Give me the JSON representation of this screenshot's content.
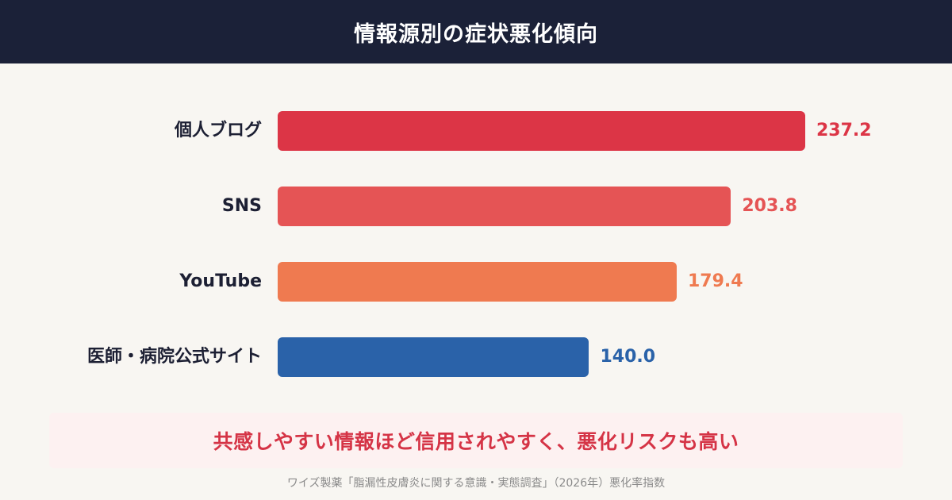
{
  "header": {
    "title": "情報源別の症状悪化傾向"
  },
  "chart_data": {
    "type": "bar",
    "orientation": "horizontal",
    "title": "情報源別の症状悪化傾向",
    "categories": [
      "個人ブログ",
      "SNS",
      "YouTube",
      "医師・病院公式サイト"
    ],
    "values": [
      237.2,
      203.8,
      179.4,
      140.0
    ],
    "value_labels": [
      "237.2",
      "203.8",
      "179.4",
      "140.0"
    ],
    "colors": [
      "#dc3546",
      "#e55455",
      "#ef7a50",
      "#2a62a9"
    ],
    "xlim": [
      0,
      260
    ],
    "grid": false,
    "legend": "none"
  },
  "callout": {
    "text": "共感しやすい情報ほど信用されやすく、悪化リスクも高い"
  },
  "source": {
    "text": "ワイズ製薬「脂漏性皮膚炎に関する意識・実態調査」（2026年）悪化率指数"
  }
}
